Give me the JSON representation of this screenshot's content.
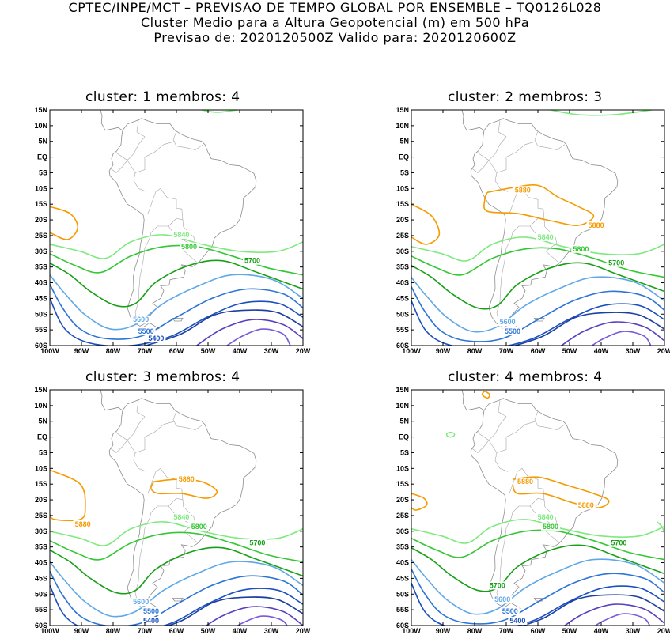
{
  "header": {
    "line1": "CPTEC/INPE/MCT – PREVISAO DE TEMPO GLOBAL POR ENSEMBLE – TQ0126L028",
    "line2": "Cluster Medio para a Altura Geopotencial (m) em 500 hPa",
    "line3": "Previsao de: 2020120500Z    Valido para: 2020120600Z"
  },
  "lat_labels": [
    "15N",
    "10N",
    "5N",
    "EQ",
    "5S",
    "10S",
    "15S",
    "20S",
    "25S",
    "30S",
    "35S",
    "40S",
    "45S",
    "50S",
    "55S",
    "60S"
  ],
  "lon_labels": [
    "100W",
    "90W",
    "80W",
    "70W",
    "60W",
    "50W",
    "40W",
    "30W",
    "20W"
  ],
  "colors": {
    "c5880": "#f59b00",
    "c5840": "#7eea7e",
    "c5800": "#34c734",
    "c5700": "#17a017",
    "c5600": "#5fa8e8",
    "c5500": "#2c74d6",
    "c5400": "#1a4fbf",
    "c5300": "#1b3fa3",
    "c5200": "#5a3fc0",
    "c5100": "#7a5ad8",
    "coast": "#8c8c8c",
    "land": "#a6a6a6"
  },
  "panels": [
    {
      "title": "cluster: 1   membros: 4",
      "labels": [
        {
          "text": "5840",
          "level": "c5840"
        },
        {
          "text": "5800",
          "level": "c5800"
        },
        {
          "text": "5700",
          "level": "c5700"
        },
        {
          "text": "5600",
          "level": "c5600"
        },
        {
          "text": "5500",
          "level": "c5500"
        },
        {
          "text": "5400",
          "level": "c5400"
        }
      ]
    },
    {
      "title": "cluster: 2   membros: 3",
      "labels": [
        {
          "text": "5880",
          "level": "c5880"
        },
        {
          "text": "5880",
          "level": "c5880"
        },
        {
          "text": "5840",
          "level": "c5840"
        },
        {
          "text": "5800",
          "level": "c5800"
        },
        {
          "text": "5700",
          "level": "c5700"
        },
        {
          "text": "5600",
          "level": "c5600"
        },
        {
          "text": "5500",
          "level": "c5500"
        }
      ]
    },
    {
      "title": "cluster: 3   membros: 4",
      "labels": [
        {
          "text": "5880",
          "level": "c5880"
        },
        {
          "text": "5880",
          "level": "c5880"
        },
        {
          "text": "5840",
          "level": "c5840"
        },
        {
          "text": "5800",
          "level": "c5800"
        },
        {
          "text": "5700",
          "level": "c5700"
        },
        {
          "text": "5600",
          "level": "c5600"
        },
        {
          "text": "5500",
          "level": "c5500"
        },
        {
          "text": "5400",
          "level": "c5400"
        }
      ]
    },
    {
      "title": "cluster: 4   membros: 4",
      "labels": [
        {
          "text": "5880",
          "level": "c5880"
        },
        {
          "text": "5880",
          "level": "c5880"
        },
        {
          "text": "5840",
          "level": "c5840"
        },
        {
          "text": "5800",
          "level": "c5800"
        },
        {
          "text": "5700",
          "level": "c5700"
        },
        {
          "text": "5700",
          "level": "c5700"
        },
        {
          "text": "5600",
          "level": "c5600"
        },
        {
          "text": "5500",
          "level": "c5500"
        },
        {
          "text": "5400",
          "level": "c5400"
        }
      ]
    }
  ]
}
